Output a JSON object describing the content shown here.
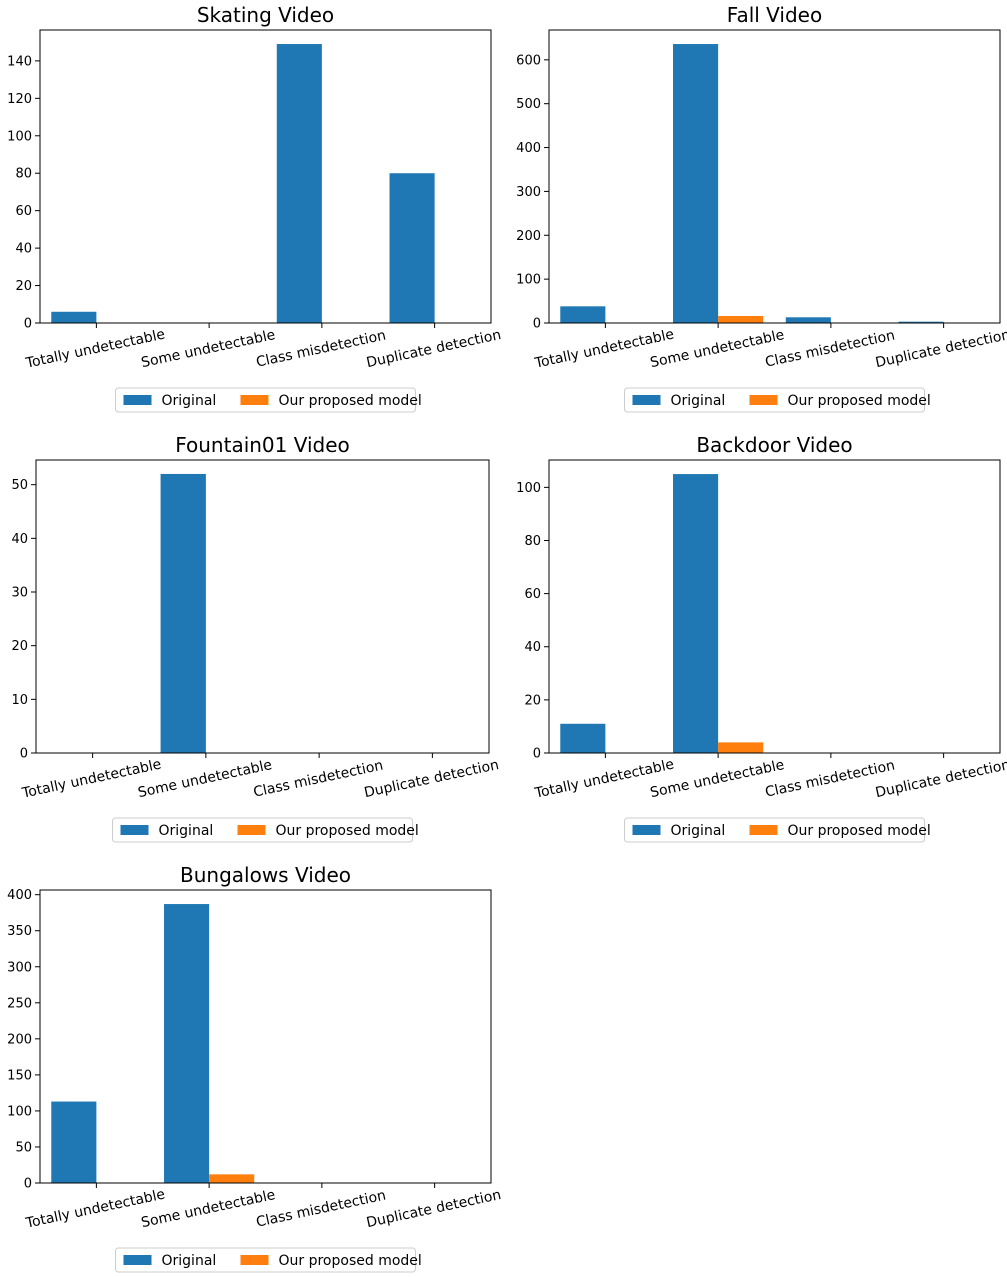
{
  "colors": {
    "original": "#1f77b4",
    "proposed": "#ff7f0e",
    "axis": "#000000"
  },
  "chart_data": [
    {
      "type": "bar",
      "title": "Skating Video",
      "categories": [
        "Totally undetectable",
        "Some undetectable",
        "Class misdetection",
        "Duplicate detection"
      ],
      "series": [
        {
          "name": "Original",
          "values": [
            6,
            0,
            149,
            80
          ]
        },
        {
          "name": "Our proposed model",
          "values": [
            0,
            0,
            0,
            0
          ]
        }
      ],
      "yticks": [
        0,
        20,
        40,
        60,
        80,
        100,
        120,
        140
      ],
      "ylim": [
        0,
        156.5
      ],
      "xlabel": "",
      "ylabel": "",
      "legend": "bottom-center"
    },
    {
      "type": "bar",
      "title": "Fall Video",
      "categories": [
        "Totally undetectable",
        "Some undetectable",
        "Class misdetection",
        "Duplicate detection"
      ],
      "series": [
        {
          "name": "Original",
          "values": [
            38,
            636,
            13,
            3
          ]
        },
        {
          "name": "Our proposed model",
          "values": [
            0,
            16,
            0,
            0
          ]
        }
      ],
      "yticks": [
        0,
        100,
        200,
        300,
        400,
        500,
        600
      ],
      "ylim": [
        0,
        668
      ],
      "xlabel": "",
      "ylabel": "",
      "legend": "bottom-center"
    },
    {
      "type": "bar",
      "title": "Fountain01 Video",
      "categories": [
        "Totally undetectable",
        "Some undetectable",
        "Class misdetection",
        "Duplicate detection"
      ],
      "series": [
        {
          "name": "Original",
          "values": [
            0,
            52,
            0,
            0
          ]
        },
        {
          "name": "Our proposed model",
          "values": [
            0,
            0,
            0,
            0
          ]
        }
      ],
      "yticks": [
        0,
        10,
        20,
        30,
        40,
        50
      ],
      "ylim": [
        0,
        54.6
      ],
      "xlabel": "",
      "ylabel": "",
      "legend": "bottom-center"
    },
    {
      "type": "bar",
      "title": "Backdoor Video",
      "categories": [
        "Totally undetectable",
        "Some undetectable",
        "Class misdetection",
        "Duplicate detection"
      ],
      "series": [
        {
          "name": "Original",
          "values": [
            11,
            105,
            0,
            0
          ]
        },
        {
          "name": "Our proposed model",
          "values": [
            0,
            4,
            0,
            0
          ]
        }
      ],
      "yticks": [
        0,
        20,
        40,
        60,
        80,
        100
      ],
      "ylim": [
        0,
        110.3
      ],
      "xlabel": "",
      "ylabel": "",
      "legend": "bottom-center"
    },
    {
      "type": "bar",
      "title": "Bungalows Video",
      "categories": [
        "Totally undetectable",
        "Some undetectable",
        "Class misdetection",
        "Duplicate detection"
      ],
      "series": [
        {
          "name": "Original",
          "values": [
            113,
            387,
            0,
            0
          ]
        },
        {
          "name": "Our proposed model",
          "values": [
            0,
            12,
            0,
            0
          ]
        }
      ],
      "yticks": [
        0,
        50,
        100,
        150,
        200,
        250,
        300,
        350,
        400
      ],
      "ylim": [
        0,
        406.5
      ],
      "xlabel": "",
      "ylabel": "",
      "legend": "bottom-center"
    }
  ]
}
